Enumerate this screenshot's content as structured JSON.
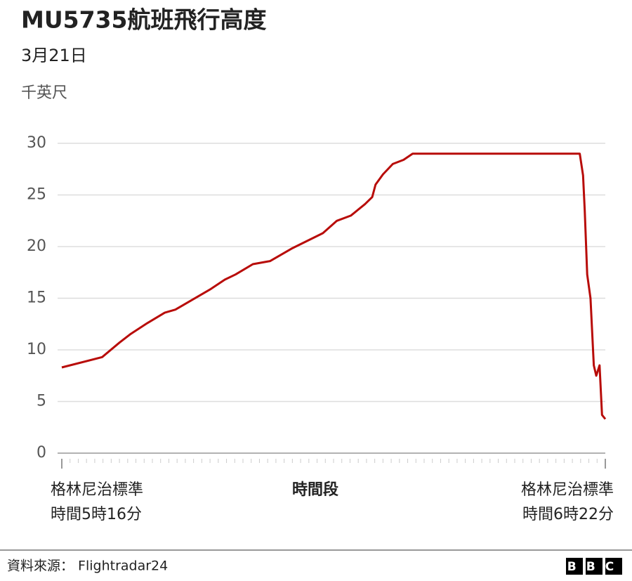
{
  "chart_data": {
    "type": "line",
    "title": "MU5735航班飛行高度",
    "subtitle": "3月21日",
    "ylabel": "千英尺",
    "xlabel": "時間段",
    "x_start_label": "格林尼治標準\n時間5時16分",
    "x_end_label": "格林尼治標準\n時間6時22分",
    "xlim": [
      0,
      66
    ],
    "ylim": [
      0,
      30
    ],
    "yticks": [
      0,
      5,
      10,
      15,
      20,
      25,
      30
    ],
    "grid": true,
    "x": [
      0,
      4.9,
      7.0,
      8.3,
      10.4,
      12.5,
      13.8,
      18.1,
      19.8,
      21.1,
      23.2,
      25.3,
      27.9,
      31.7,
      33.4,
      35.1,
      36.8,
      37.7,
      38.1,
      39.0,
      40.2,
      41.5,
      42.6,
      62.9,
      63.3,
      63.5,
      63.8,
      64.2,
      64.6,
      64.9,
      65.3,
      65.6,
      66
    ],
    "series": [
      {
        "color": "#b80c09",
        "values": [
          8.3,
          9.3,
          10.7,
          11.5,
          12.6,
          13.6,
          13.9,
          15.9,
          16.8,
          17.3,
          18.3,
          18.6,
          19.8,
          21.3,
          22.5,
          23,
          24.1,
          24.8,
          26,
          27,
          28,
          28.4,
          29,
          29,
          26.9,
          23.5,
          17.3,
          15,
          8.5,
          7.5,
          8.5,
          3.7,
          3.3
        ]
      }
    ]
  },
  "footer": {
    "source": "資料來源： Flightradar24",
    "logo": "BBC"
  }
}
